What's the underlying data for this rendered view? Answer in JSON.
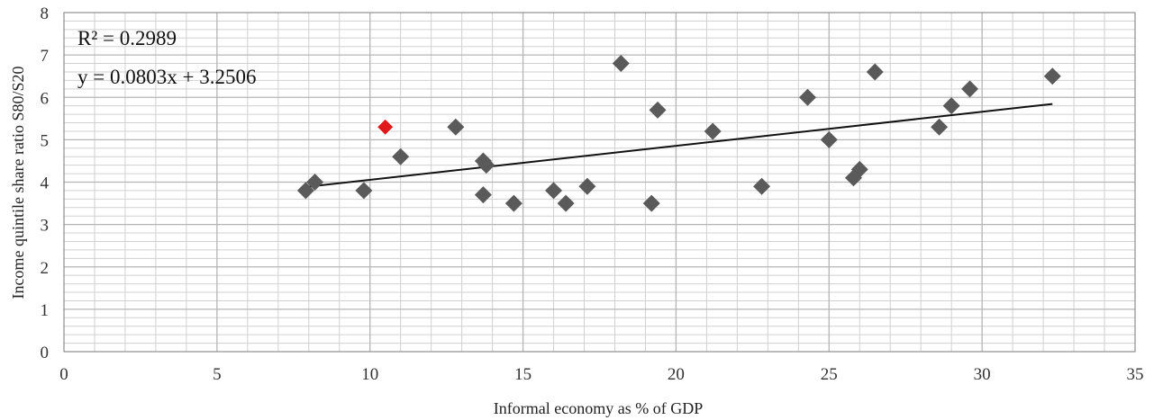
{
  "chart_data": {
    "type": "scatter",
    "xlabel": "Informal economy as % of GDP",
    "ylabel": "Income quintile share ratio S80/S20",
    "xlim": [
      0,
      35
    ],
    "ylim": [
      0,
      8
    ],
    "x_ticks": [
      0,
      5,
      10,
      15,
      20,
      25,
      30,
      35
    ],
    "y_ticks": [
      0,
      1,
      2,
      3,
      4,
      5,
      6,
      7,
      8
    ],
    "x_tick_labels": [
      "0",
      "5",
      "10",
      "15",
      "20",
      "25",
      "30",
      "35"
    ],
    "y_tick_labels": [
      "0",
      "1",
      "2",
      "3",
      "4",
      "5",
      "6",
      "7",
      "8"
    ],
    "grid": true,
    "marker": "diamond",
    "colors": {
      "points": "#5a5a5a",
      "highlight": "#e0191c",
      "trendline": "#111111",
      "grid": "#b5b5b5"
    },
    "points": [
      {
        "x": 7.9,
        "y": 3.8
      },
      {
        "x": 8.2,
        "y": 4.0
      },
      {
        "x": 9.8,
        "y": 3.8
      },
      {
        "x": 10.5,
        "y": 5.3,
        "highlight": true
      },
      {
        "x": 11.0,
        "y": 4.6
      },
      {
        "x": 12.8,
        "y": 5.3
      },
      {
        "x": 13.7,
        "y": 4.5
      },
      {
        "x": 13.8,
        "y": 4.4
      },
      {
        "x": 13.7,
        "y": 3.7
      },
      {
        "x": 14.7,
        "y": 3.5
      },
      {
        "x": 16.0,
        "y": 3.8
      },
      {
        "x": 16.4,
        "y": 3.5
      },
      {
        "x": 17.1,
        "y": 3.9
      },
      {
        "x": 18.2,
        "y": 6.8
      },
      {
        "x": 19.2,
        "y": 3.5
      },
      {
        "x": 19.4,
        "y": 5.7
      },
      {
        "x": 21.2,
        "y": 5.2
      },
      {
        "x": 22.8,
        "y": 3.9
      },
      {
        "x": 24.3,
        "y": 6.0
      },
      {
        "x": 25.0,
        "y": 5.0
      },
      {
        "x": 25.8,
        "y": 4.1
      },
      {
        "x": 26.0,
        "y": 4.3
      },
      {
        "x": 26.5,
        "y": 6.6
      },
      {
        "x": 28.6,
        "y": 5.3
      },
      {
        "x": 29.0,
        "y": 5.8
      },
      {
        "x": 29.6,
        "y": 6.2
      },
      {
        "x": 32.3,
        "y": 6.5
      }
    ],
    "trendline": {
      "slope": 0.0803,
      "intercept": 3.2506,
      "x_range": [
        7.9,
        32.3
      ]
    },
    "annotations": [
      "R² = 0.2989",
      "y = 0.0803x + 3.2506"
    ]
  }
}
